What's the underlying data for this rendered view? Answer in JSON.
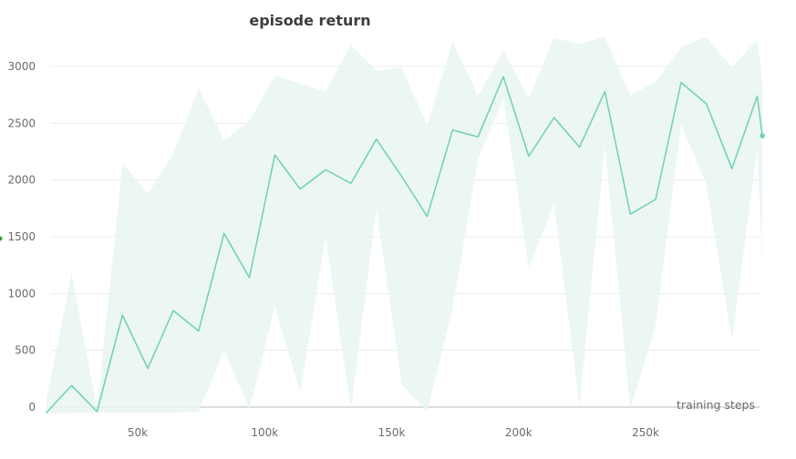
{
  "chart_data": {
    "type": "line",
    "title": "episode return",
    "xlabel": "training steps",
    "ylabel": "",
    "xlim": [
      14000,
      296000
    ],
    "ylim": [
      -60,
      3300
    ],
    "x_ticks": [
      50000,
      100000,
      150000,
      200000,
      250000
    ],
    "x_tick_labels": [
      "50k",
      "100k",
      "150k",
      "200k",
      "250k"
    ],
    "y_ticks": [
      0,
      500,
      1000,
      1500,
      2000,
      2500,
      3000
    ],
    "y_tick_labels": [
      "0",
      "500",
      "1000",
      "1500",
      "2000",
      "2500",
      "3000"
    ],
    "grid": true,
    "colors": {
      "line": "#6fcfb5",
      "band": "#e9f6f0",
      "dot": "#2a9b3c"
    },
    "series": [
      {
        "x": [
          14000,
          24000,
          34000,
          44000,
          54000,
          64000,
          74000,
          84000,
          94000,
          104000,
          114000,
          124000,
          134000,
          144000,
          154000,
          164000,
          174000,
          184000,
          194000,
          204000,
          214000,
          224000,
          234000,
          244000,
          254000,
          264000,
          274000,
          284000,
          294000,
          296000
        ],
        "mean": [
          -50,
          190,
          -40,
          810,
          340,
          850,
          670,
          1530,
          1140,
          2220,
          1920,
          2090,
          1970,
          2360,
          2030,
          1680,
          2440,
          2380,
          2910,
          2210,
          2550,
          2290,
          2780,
          1700,
          1830,
          2860,
          2670,
          2100,
          2740,
          2390
        ],
        "upper": [
          60,
          1180,
          -30,
          2150,
          1880,
          2230,
          2810,
          2350,
          2520,
          2920,
          2850,
          2780,
          3190,
          2960,
          2990,
          2480,
          3220,
          2740,
          3140,
          2720,
          3250,
          3200,
          3260,
          2740,
          2870,
          3170,
          3260,
          2990,
          3240,
          2880
        ],
        "lower": [
          -60,
          -50,
          -50,
          -50,
          -50,
          -50,
          -40,
          500,
          -20,
          880,
          130,
          1500,
          -20,
          1750,
          200,
          -40,
          870,
          2180,
          2720,
          1230,
          1790,
          10,
          2300,
          -20,
          720,
          2490,
          1960,
          590,
          2280,
          1260
        ]
      }
    ]
  }
}
